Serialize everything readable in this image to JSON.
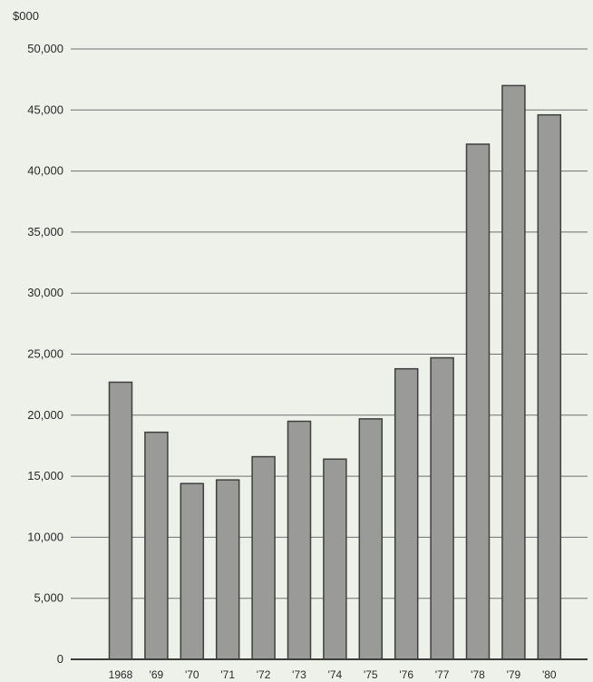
{
  "chart_data": {
    "type": "bar",
    "title": "",
    "xlabel": "",
    "ylabel": "",
    "y_unit_label": "$000",
    "categories": [
      "1968",
      "'69",
      "'70",
      "'71",
      "'72",
      "'73",
      "'74",
      "'75",
      "'76",
      "'77",
      "'78",
      "'79",
      "'80"
    ],
    "values": [
      22700,
      18600,
      14400,
      14700,
      16600,
      19500,
      16400,
      19700,
      23800,
      24700,
      42200,
      47000,
      44600
    ],
    "ylim": [
      0,
      50000
    ],
    "yticks": [
      0,
      5000,
      10000,
      15000,
      20000,
      25000,
      30000,
      35000,
      40000,
      45000,
      50000
    ],
    "ytick_labels": [
      "0",
      "5,000",
      "10,000",
      "15,000",
      "20,000",
      "25,000",
      "30,000",
      "35,000",
      "40,000",
      "45,000",
      "50,000"
    ],
    "grid": true,
    "legend": "none",
    "colors": {
      "bar_fill": "#9a9b99",
      "bar_stroke": "#3f403e",
      "grid": "#6f7170",
      "background": "#eef0ea"
    }
  }
}
